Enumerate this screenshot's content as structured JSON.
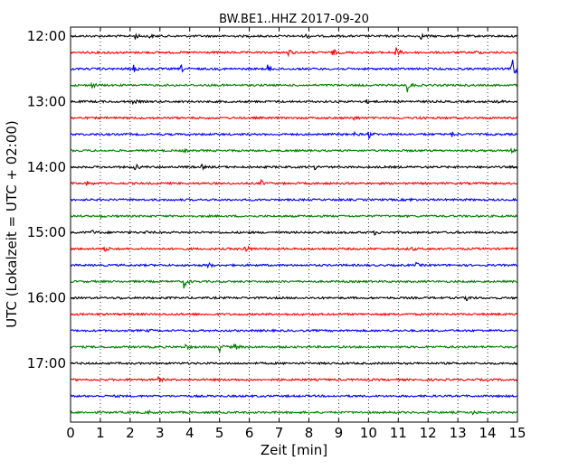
{
  "chart_data": {
    "type": "line",
    "title": "BW.BE1..HHZ 2017-09-20",
    "xlabel": "Zeit  [min]",
    "ylabel": "UTC (Lokalzeit = UTC + 02:00)",
    "xlim": [
      0,
      15
    ],
    "x_ticks": [
      "0",
      "1",
      "2",
      "3",
      "4",
      "5",
      "6",
      "7",
      "8",
      "9",
      "10",
      "11",
      "12",
      "13",
      "14",
      "15"
    ],
    "y_tick_labels": [
      "12:00",
      "13:00",
      "14:00",
      "15:00",
      "16:00",
      "17:00"
    ],
    "vertical_grid": "dotted",
    "line_interval_min": 15,
    "color_cycle": [
      "#000000",
      "#ff0000",
      "#0000ff",
      "#008000"
    ],
    "traces": [
      {
        "start": "12:00",
        "events": [
          {
            "t": 2.15,
            "amp": 0.5
          },
          {
            "t": 2.6,
            "amp": 0.4
          },
          {
            "t": 7.9,
            "amp": 0.3
          },
          {
            "t": 11.75,
            "amp": 0.4
          }
        ]
      },
      {
        "start": "12:15",
        "events": [
          {
            "t": 1.2,
            "amp": 0.2
          },
          {
            "t": 7.3,
            "amp": 0.6
          },
          {
            "t": 8.8,
            "amp": 0.6
          },
          {
            "t": 10.9,
            "amp": 1.0
          },
          {
            "t": 13.6,
            "amp": 0.3
          }
        ]
      },
      {
        "start": "12:30",
        "events": [
          {
            "t": 2.1,
            "amp": 0.7
          },
          {
            "t": 3.7,
            "amp": 0.6
          },
          {
            "t": 6.6,
            "amp": 0.6
          },
          {
            "t": 14.8,
            "amp": 3.0
          }
        ]
      },
      {
        "start": "12:45",
        "events": [
          {
            "t": 0.7,
            "amp": 0.5
          },
          {
            "t": 11.3,
            "amp": 1.0
          }
        ]
      },
      {
        "start": "13:00",
        "events": [
          {
            "t": 2.1,
            "amp": 0.3
          },
          {
            "t": 9.9,
            "amp": 0.3
          },
          {
            "t": 14.3,
            "amp": 0.3
          }
        ]
      },
      {
        "start": "13:15",
        "events": [
          {
            "t": 9.5,
            "amp": 0.3
          },
          {
            "t": 11.6,
            "amp": 0.4
          }
        ]
      },
      {
        "start": "13:30",
        "events": [
          {
            "t": 9.5,
            "amp": 0.3
          },
          {
            "t": 10.0,
            "amp": 0.6
          },
          {
            "t": 12.8,
            "amp": 0.3
          }
        ]
      },
      {
        "start": "13:45",
        "events": [
          {
            "t": 3.8,
            "amp": 0.2
          },
          {
            "t": 14.8,
            "amp": 0.3
          }
        ]
      },
      {
        "start": "14:00",
        "events": [
          {
            "t": 2.15,
            "amp": 0.6
          },
          {
            "t": 4.4,
            "amp": 0.3
          },
          {
            "t": 8.2,
            "amp": 0.3
          }
        ]
      },
      {
        "start": "14:15",
        "events": [
          {
            "t": 0.5,
            "amp": 0.4
          },
          {
            "t": 6.4,
            "amp": 0.4
          }
        ]
      },
      {
        "start": "14:30",
        "events": [
          {
            "t": 11.4,
            "amp": 0.2
          }
        ]
      },
      {
        "start": "14:45",
        "events": [
          {
            "t": 1.0,
            "amp": 0.15
          }
        ]
      },
      {
        "start": "15:00",
        "events": [
          {
            "t": 0.7,
            "amp": 0.4
          },
          {
            "t": 2.5,
            "amp": 0.2
          },
          {
            "t": 10.2,
            "amp": 0.3
          }
        ]
      },
      {
        "start": "15:15",
        "events": [
          {
            "t": 1.15,
            "amp": 0.5
          },
          {
            "t": 5.85,
            "amp": 0.8
          },
          {
            "t": 11.4,
            "amp": 0.4
          }
        ]
      },
      {
        "start": "15:30",
        "events": [
          {
            "t": 4.6,
            "amp": 0.5
          },
          {
            "t": 11.6,
            "amp": 0.3
          }
        ]
      },
      {
        "start": "15:45",
        "events": [
          {
            "t": 3.8,
            "amp": 1.0
          }
        ]
      },
      {
        "start": "16:00",
        "events": [
          {
            "t": 1.6,
            "amp": 0.2
          },
          {
            "t": 13.3,
            "amp": 0.5
          }
        ]
      },
      {
        "start": "16:15",
        "events": []
      },
      {
        "start": "16:30",
        "events": [
          {
            "t": 2.6,
            "amp": 0.15
          }
        ]
      },
      {
        "start": "16:45",
        "events": [
          {
            "t": 3.85,
            "amp": 0.4
          },
          {
            "t": 5.0,
            "amp": 0.8
          },
          {
            "t": 5.5,
            "amp": 0.6
          }
        ]
      },
      {
        "start": "17:00",
        "events": []
      },
      {
        "start": "17:15",
        "events": [
          {
            "t": 2.95,
            "amp": 0.4
          }
        ]
      },
      {
        "start": "17:30",
        "events": [
          {
            "t": 1.5,
            "amp": 0.15
          }
        ]
      },
      {
        "start": "17:45",
        "events": [
          {
            "t": 2.6,
            "amp": 0.3
          },
          {
            "t": 13.5,
            "amp": 0.3
          }
        ]
      }
    ]
  }
}
